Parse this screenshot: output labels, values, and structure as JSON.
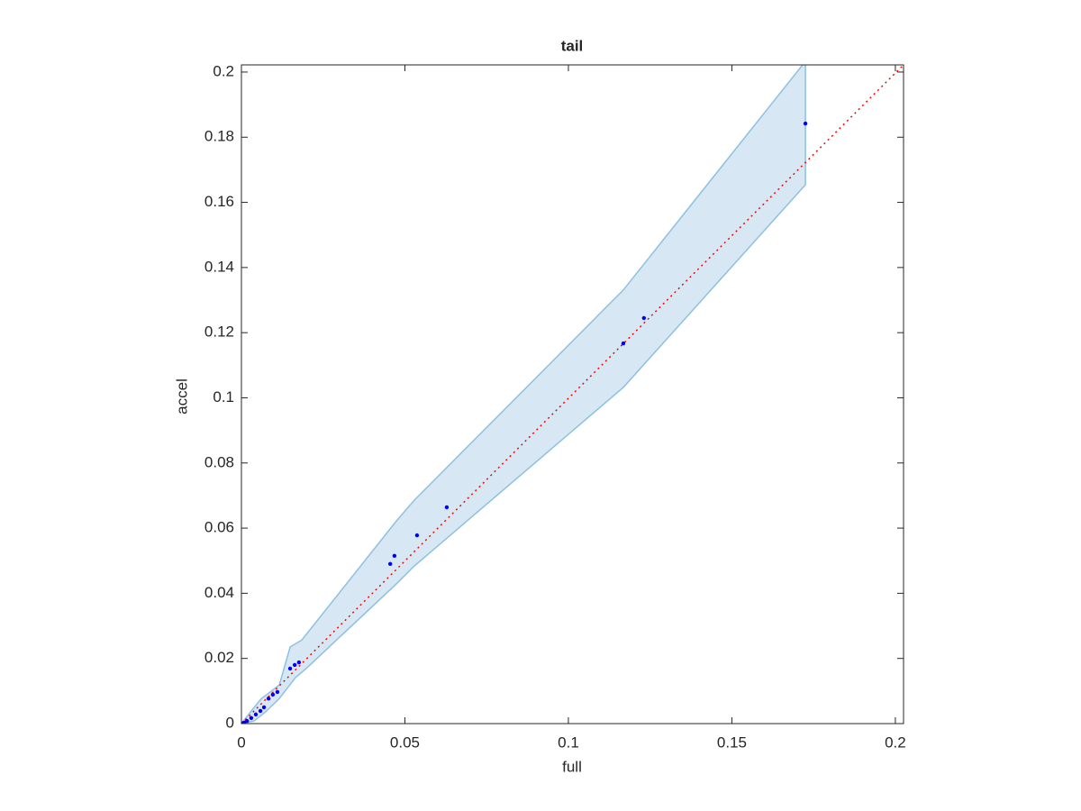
{
  "chart_data": {
    "type": "scatter",
    "title": "tail",
    "x_label": "full",
    "y_label": "accel",
    "xlim": [
      0,
      0.2025
    ],
    "ylim": [
      0,
      0.2022
    ],
    "xticks": [
      0,
      0.05,
      0.1,
      0.15,
      0.2
    ],
    "yticks": [
      0,
      0.02,
      0.04,
      0.06,
      0.08,
      0.1,
      0.12,
      0.14,
      0.16,
      0.18,
      0.2
    ],
    "points": {
      "color": "#0000ff",
      "x": [
        0.1725,
        0.1231,
        0.1168,
        0.0628,
        0.0537,
        0.0468,
        0.0455,
        0.0176,
        0.0163,
        0.0149,
        0.011,
        0.0096,
        0.0083,
        0.0069,
        0.0058,
        0.0044,
        0.003,
        0.0017,
        0.0008,
        0.0003
      ],
      "y": [
        0.1842,
        0.1245,
        0.1167,
        0.0664,
        0.0578,
        0.0515,
        0.049,
        0.0188,
        0.018,
        0.0169,
        0.0097,
        0.0089,
        0.0077,
        0.005,
        0.0039,
        0.0028,
        0.0017,
        0.0008,
        0.0003,
        0.0001
      ]
    },
    "band": {
      "fill": "#d7e7f3",
      "edge_color": "#8fc0e0",
      "x_upper": [
        0,
        0.0028,
        0.0061,
        0.0088,
        0.0116,
        0.0149,
        0.0185,
        0.0474,
        0.0529,
        0.1168,
        0.1725
      ],
      "upper": [
        0,
        0.0036,
        0.0077,
        0.0097,
        0.0119,
        0.0235,
        0.0257,
        0.0622,
        0.0686,
        0.1331,
        0.2033
      ],
      "x_lower": [
        0,
        0.0039,
        0.0074,
        0.0116,
        0.0165,
        0.0198,
        0.0474,
        0.0529,
        0.1168,
        0.1725
      ],
      "lower": [
        0,
        0.0008,
        0.0036,
        0.0077,
        0.0141,
        0.0169,
        0.0429,
        0.0484,
        0.1032,
        0.1654
      ]
    },
    "reference_line": {
      "color": "#ff0000",
      "x": [
        0,
        0.2025
      ],
      "y": [
        0,
        0.2022
      ]
    }
  }
}
